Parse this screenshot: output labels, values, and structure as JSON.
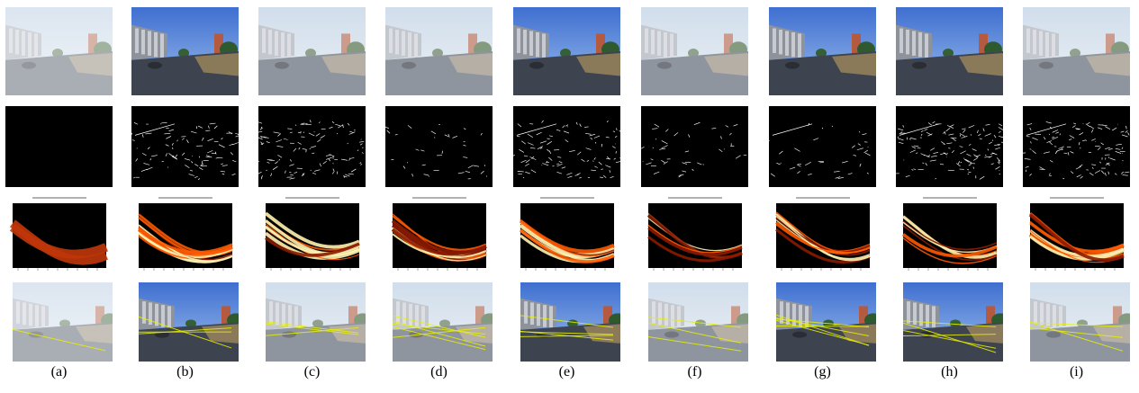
{
  "figure": {
    "captions": [
      "(a)",
      "(b)",
      "(c)",
      "(d)",
      "(e)",
      "(f)",
      "(g)",
      "(h)",
      "(i)"
    ],
    "rows": [
      "input-image",
      "edge-map",
      "hough-accumulator",
      "detected-lines"
    ]
  },
  "colors": {
    "sky_hazy": "#c9d8e8",
    "sky_clear": "#3f6fd0",
    "road": "#3d4450",
    "edge": "#ffffff",
    "heat_low": "#8a1a00",
    "heat_mid": "#ff5a00",
    "heat_high": "#fff2b0",
    "line_overlay": "#e8f000"
  }
}
